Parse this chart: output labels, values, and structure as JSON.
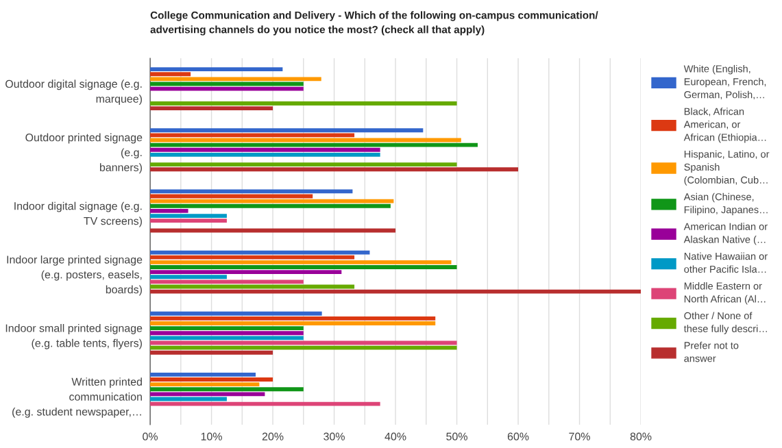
{
  "chart_data": {
    "type": "bar",
    "orientation": "horizontal",
    "title": "College Communication and Delivery - Which of the following on-campus communication/\nadvertising channels do you notice the most? (check all that apply)",
    "categories": [
      "Outdoor digital signage (e.g.\nmarquee)",
      "Outdoor printed signage\n(e.g.\nbanners)",
      "Indoor digital signage (e.g.\nTV screens)",
      "Indoor large printed signage\n(e.g. posters, easels,\nboards)",
      "Indoor small printed signage\n(e.g. table tents, flyers)",
      "Written printed\ncommunication\n(e.g. student newspaper,…"
    ],
    "series": [
      {
        "name": "White (English,\nEuropean, French,\nGerman, Polish,…",
        "color": "#3366cc",
        "values": [
          21.6,
          44.5,
          33.0,
          35.8,
          28.0,
          17.2
        ]
      },
      {
        "name": "Black, African\nAmerican, or\nAfrican (Ethiopia…",
        "color": "#dc3912",
        "values": [
          6.6,
          33.3,
          26.5,
          33.3,
          46.5,
          20
        ]
      },
      {
        "name": "Hispanic, Latino, or\nSpanish\n(Colombian, Cub…",
        "color": "#ff9900",
        "values": [
          27.9,
          50.7,
          39.7,
          49.1,
          46.5,
          17.8
        ]
      },
      {
        "name": "Asian (Chinese,\nFilipino, Japanes…",
        "color": "#109618",
        "values": [
          25,
          53.4,
          39.2,
          50,
          25,
          25
        ]
      },
      {
        "name": "American Indian or\nAlaskan Native (…",
        "color": "#990099",
        "values": [
          25,
          37.5,
          6.2,
          31.2,
          25,
          18.7
        ]
      },
      {
        "name": "Native Hawaiian or\nother Pacific Isla…",
        "color": "#0099c6",
        "values": [
          0,
          37.5,
          12.5,
          12.5,
          25,
          12.5
        ]
      },
      {
        "name": "Middle Eastern or\nNorth African (Al…",
        "color": "#dd4477",
        "values": [
          0,
          0,
          12.5,
          25,
          50,
          37.5
        ]
      },
      {
        "name": "Other / None of\nthese fully descri…",
        "color": "#66aa00",
        "values": [
          50,
          50,
          0,
          33.3,
          50,
          0
        ]
      },
      {
        "name": "Prefer not to\nanswer",
        "color": "#b82e2e",
        "values": [
          20,
          60,
          40,
          80,
          20,
          0
        ]
      }
    ],
    "xlim": [
      0,
      80
    ],
    "xticks": [
      {
        "value": 0,
        "label": "0%"
      },
      {
        "value": 5,
        "label": null
      },
      {
        "value": 10,
        "label": "10%"
      },
      {
        "value": 15,
        "label": null
      },
      {
        "value": 20,
        "label": "20%"
      },
      {
        "value": 25,
        "label": null
      },
      {
        "value": 30,
        "label": "30%"
      },
      {
        "value": 35,
        "label": null
      },
      {
        "value": 40,
        "label": "40%"
      },
      {
        "value": 45,
        "label": null
      },
      {
        "value": 50,
        "label": "50%"
      },
      {
        "value": 55,
        "label": null
      },
      {
        "value": 60,
        "label": "60%"
      },
      {
        "value": 65,
        "label": null
      },
      {
        "value": 70,
        "label": "70%"
      },
      {
        "value": 75,
        "label": null
      },
      {
        "value": 80,
        "label": "80%"
      }
    ],
    "grid": "x",
    "legend": "right"
  }
}
